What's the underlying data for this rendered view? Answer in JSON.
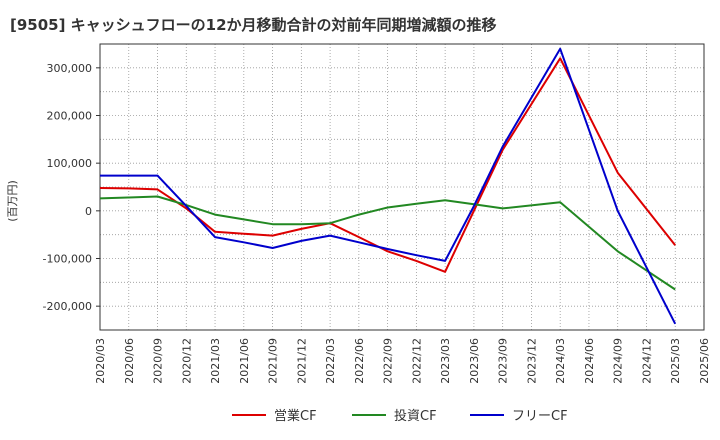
{
  "chart_data": {
    "type": "line",
    "title": "[9505]  キャッシュフローの12か月移動合計の対前年同期増減額の推移",
    "ylabel": "(百万円)",
    "xlabel": "",
    "ylim": [
      -250000,
      350000
    ],
    "yticks": [
      -200000,
      -100000,
      0,
      100000,
      200000,
      300000
    ],
    "ytick_labels": [
      "-200,000",
      "-100,000",
      "0",
      "100,000",
      "200,000",
      "300,000"
    ],
    "x": [
      "2020/03",
      "2020/06",
      "2020/09",
      "2020/12",
      "2021/03",
      "2021/06",
      "2021/09",
      "2021/12",
      "2022/03",
      "2022/06",
      "2022/09",
      "2022/12",
      "2023/03",
      "2023/06",
      "2023/09",
      "2023/12",
      "2024/03",
      "2024/06",
      "2024/09",
      "2024/12",
      "2025/03",
      "2025/06"
    ],
    "grid": true,
    "legend_position": "bottom",
    "series": [
      {
        "name": "営業CF",
        "color": "#dd0000",
        "values": [
          48000,
          47000,
          45000,
          5000,
          -44000,
          -48000,
          -52000,
          -38000,
          -26000,
          -55000,
          -85000,
          -105000,
          -128000,
          0,
          128000,
          null,
          320000,
          null,
          80000,
          null,
          -72000,
          null
        ]
      },
      {
        "name": "投資CF",
        "color": "#228822",
        "values": [
          26000,
          28000,
          30000,
          12000,
          -8000,
          -18000,
          -28000,
          -28000,
          -26000,
          -8000,
          7000,
          15000,
          22000,
          14000,
          5000,
          null,
          18000,
          null,
          -85000,
          null,
          -165000,
          null
        ]
      },
      {
        "name": "フリーCF",
        "color": "#0000cc",
        "values": [
          74000,
          74000,
          74000,
          10000,
          -55000,
          -66000,
          -78000,
          -63000,
          -52000,
          -66000,
          -80000,
          -93000,
          -105000,
          10000,
          135000,
          null,
          340000,
          null,
          0,
          null,
          -237000,
          null
        ]
      }
    ]
  }
}
